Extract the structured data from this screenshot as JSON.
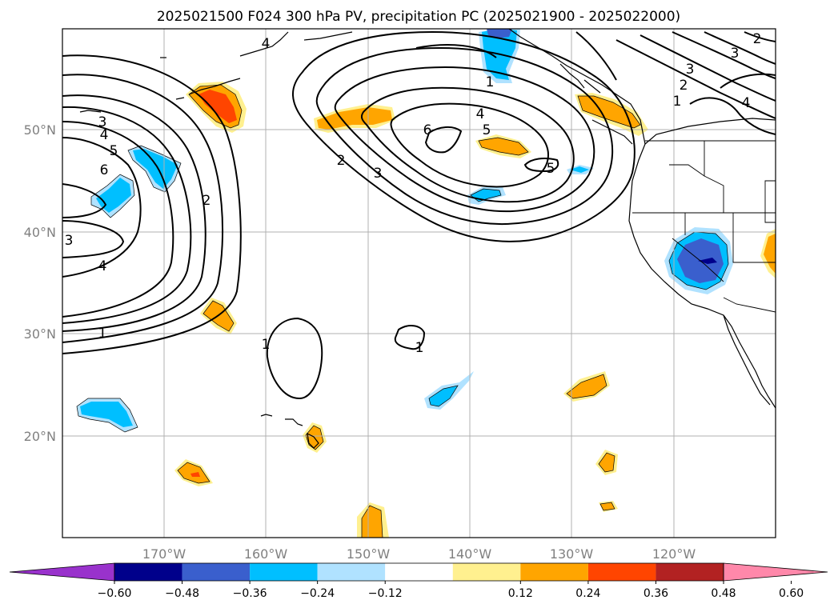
{
  "title": "2025021500 F024 300 hPa PV, precipitation PC (2025021900 - 2025022000)",
  "lon_labels": [
    "170°W",
    "160°W",
    "150°W",
    "140°W",
    "130°W",
    "120°W"
  ],
  "lat_labels": [
    "50°N",
    "40°N",
    "30°N",
    "20°N"
  ],
  "colorbar": {
    "colors": [
      "#9932cc",
      "#00008b",
      "#3a5fcd",
      "#00bfff",
      "#b0e2ff",
      "#ffffff",
      "#fff08f",
      "#ffa500",
      "#ff4500",
      "#b22222",
      "#ff88aa"
    ],
    "tick_labels": [
      "−0.60",
      "−0.48",
      "−0.36",
      "−0.24",
      "−0.12",
      "0.12",
      "0.24",
      "0.36",
      "0.48",
      "0.60"
    ]
  },
  "contour_labels": {
    "w3a": "3",
    "w4a": "4",
    "w5a": "5",
    "w6a": "6",
    "w2a": "2",
    "w4b": "4",
    "w3b": "3",
    "w1a": "1",
    "c2": "2",
    "c3": "3",
    "c6": "6",
    "c4": "4",
    "c5": "5",
    "c5b": "5",
    "c1n": "1",
    "c4n": "4",
    "e2": "2",
    "e3": "3",
    "e2b": "2",
    "e1": "1",
    "e4": "4",
    "e3b": "3",
    "s1a": "1",
    "s1b": "1"
  },
  "colors": {
    "grid": "#b0b0b0",
    "text": "#000000",
    "ticks": "#808080"
  }
}
